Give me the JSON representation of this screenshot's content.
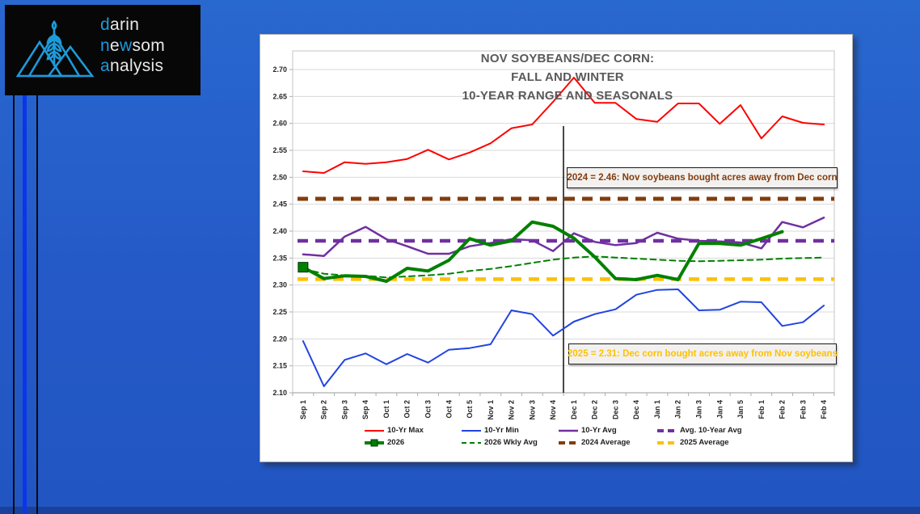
{
  "slide": {
    "background_color": "#2459C7",
    "bottom_strip_color": "#1A429C",
    "accent_line_blue": "#0C35E8"
  },
  "logo": {
    "word1": {
      "lead": "d",
      "rest": "arin"
    },
    "word2": {
      "lead": "n",
      "mid": "e",
      "accent": "w",
      "rest": "som"
    },
    "word3": {
      "lead": "a",
      "rest": "nalysis"
    },
    "accent_color": "#1D9ADA",
    "mark": "mountains-wheat"
  },
  "chart": {
    "title_lines": [
      "NOV SOYBEANS/DEC CORN:",
      "FALL AND WINTER",
      "10-YEAR RANGE AND SEASONALS"
    ],
    "annotations": [
      {
        "text": "2024 = 2.46: Nov soybeans bought acres away from Dec corn",
        "color": "#843C0C"
      },
      {
        "text": "2025 = 2.31: Dec corn bought acres away from Nov soybeans",
        "color": "#FFC000"
      }
    ],
    "title_color": "#595959"
  },
  "chart_data": {
    "type": "line",
    "title": "NOV SOYBEANS/DEC CORN: FALL AND WINTER 10-YEAR RANGE AND SEASONALS",
    "categories": [
      "Sep 1",
      "Sep 2",
      "Sep 3",
      "Sep 4",
      "Oct 1",
      "Oct 2",
      "Oct 3",
      "Oct 4",
      "Oct 5",
      "Nov 1",
      "Nov 2",
      "Nov 3",
      "Nov 4",
      "Dec 1",
      "Dec 2",
      "Dec 3",
      "Dec 4",
      "Jan 1",
      "Jan 2",
      "Jan 3",
      "Jan 4",
      "Jan 5",
      "Feb 1",
      "Feb 2",
      "Feb 3",
      "Feb 4"
    ],
    "ylim": [
      2.1,
      2.7
    ],
    "ytick_step": 0.05,
    "grid": true,
    "legend_position": "bottom",
    "divider": {
      "between_index": 13,
      "v_top": 2.595,
      "v_bottom": 2.1,
      "color": "#1a1a1a"
    },
    "series": [
      {
        "name": "10-Yr Max",
        "color": "#ff0000",
        "style": "solid",
        "width": 2,
        "values": [
          2.511,
          2.508,
          2.528,
          2.525,
          2.528,
          2.534,
          2.551,
          2.533,
          2.546,
          2.563,
          2.591,
          2.598,
          2.64,
          2.685,
          2.638,
          2.638,
          2.608,
          2.603,
          2.637,
          2.637,
          2.599,
          2.634,
          2.572,
          2.613,
          2.601,
          2.598
        ]
      },
      {
        "name": "10-Yr Min",
        "color": "#2144e0",
        "style": "solid",
        "width": 2,
        "values": [
          2.196,
          2.112,
          2.161,
          2.173,
          2.153,
          2.172,
          2.156,
          2.18,
          2.183,
          2.19,
          2.253,
          2.246,
          2.206,
          2.232,
          2.246,
          2.255,
          2.282,
          2.291,
          2.292,
          2.253,
          2.254,
          2.269,
          2.268,
          2.224,
          2.231,
          2.262
        ]
      },
      {
        "name": "10-Yr Avg",
        "color": "#7030a0",
        "style": "solid",
        "width": 2.5,
        "values": [
          2.357,
          2.354,
          2.39,
          2.408,
          2.385,
          2.372,
          2.358,
          2.358,
          2.372,
          2.378,
          2.385,
          2.383,
          2.363,
          2.396,
          2.38,
          2.374,
          2.378,
          2.397,
          2.386,
          2.382,
          2.381,
          2.379,
          2.368,
          2.417,
          2.407,
          2.425
        ]
      },
      {
        "name": "Avg. 10-Year Avg",
        "color": "#7030a0",
        "style": "dashed",
        "width": 4.5,
        "constant": 2.382
      },
      {
        "name": "2026",
        "color": "#008000",
        "style": "solid",
        "width": 4,
        "marker": "square",
        "values": [
          2.333,
          2.312,
          2.317,
          2.316,
          2.307,
          2.331,
          2.326,
          2.346,
          2.386,
          2.374,
          2.382,
          2.417,
          2.409,
          2.387,
          2.352,
          2.312,
          2.31,
          2.318,
          2.31,
          2.377,
          2.377,
          2.374,
          2.386,
          2.399,
          null,
          null
        ]
      },
      {
        "name": "2026 Wkly Avg",
        "color": "#008000",
        "style": "dashed",
        "width": 2,
        "values": [
          2.33,
          2.321,
          2.318,
          2.317,
          2.314,
          2.316,
          2.318,
          2.321,
          2.326,
          2.33,
          2.335,
          2.341,
          2.347,
          2.351,
          2.353,
          2.351,
          2.349,
          2.347,
          2.345,
          2.344,
          2.345,
          2.346,
          2.347,
          2.349,
          2.35,
          2.351
        ]
      },
      {
        "name": "2024 Average",
        "color": "#843c0c",
        "style": "dashed",
        "width": 5,
        "constant": 2.46
      },
      {
        "name": "2025 Average",
        "color": "#ffc000",
        "style": "dashed",
        "width": 4.5,
        "constant": 2.311
      }
    ],
    "legend_rows": [
      [
        0,
        1,
        2,
        3
      ],
      [
        4,
        5,
        6,
        7
      ]
    ]
  }
}
